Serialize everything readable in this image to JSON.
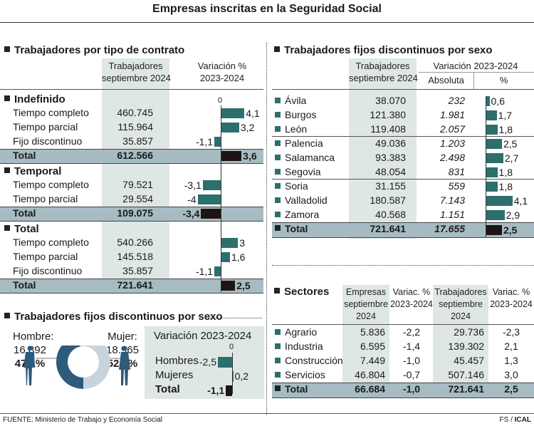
{
  "title": "Empresas inscritas en la Seguridad Social",
  "colors": {
    "bar": "#2c6f6d",
    "total_bar": "#1e1414",
    "total_row": "#a7bcc2",
    "shaded_column": "#dfe7e6",
    "donut_hombre": "#2e5a7c",
    "donut_mujer": "#c9d3dd"
  },
  "contrato": {
    "title": "Trabajadores por tipo de contrato",
    "col1": [
      "Trabajadores",
      "septiembre 2024"
    ],
    "col2": [
      "Variación %",
      "2023-2024"
    ],
    "zero_label": "0",
    "groups": [
      {
        "name": "Indefinido",
        "rows": [
          {
            "label": "Tiempo completo",
            "value": "460.745",
            "var": 4.1,
            "var_label": "4,1"
          },
          {
            "label": "Tiempo parcial",
            "value": "115.964",
            "var": 3.2,
            "var_label": "3,2"
          },
          {
            "label": "Fijo discontinuo",
            "value": "35.857",
            "var": -1.1,
            "var_label": "-1,1"
          }
        ],
        "total": {
          "label": "Total",
          "value": "612.566",
          "var": 3.6,
          "var_label": "3,6"
        }
      },
      {
        "name": "Temporal",
        "rows": [
          {
            "label": "Tiempo completo",
            "value": "79.521",
            "var": -3.1,
            "var_label": "-3,1"
          },
          {
            "label": "Tiempo parcial",
            "value": "29.554",
            "var": -4,
            "var_label": "-4"
          }
        ],
        "total": {
          "label": "Total",
          "value": "109.075",
          "var": -3.4,
          "var_label": "-3,4"
        }
      },
      {
        "name": "Total",
        "rows": [
          {
            "label": "Tiempo completo",
            "value": "540.266",
            "var": 3,
            "var_label": "3"
          },
          {
            "label": "Tiempo parcial",
            "value": "145.518",
            "var": 1.6,
            "var_label": "1,6"
          },
          {
            "label": "Fijo discontinuo",
            "value": "35.857",
            "var": -1.1,
            "var_label": "-1,1"
          }
        ],
        "total": {
          "label": "Total",
          "value": "721.641",
          "var": 2.5,
          "var_label": "2,5"
        }
      }
    ]
  },
  "provincias": {
    "title": "Trabajadores fijos discontinuos por sexo",
    "col1": [
      "Trabajadores",
      "septiembre 2024"
    ],
    "col2": "Variación 2023-2024",
    "col2a": "Absoluta",
    "col2b": "%",
    "rows": [
      {
        "label": "Ávila",
        "value": "38.070",
        "abs": "232",
        "pct": 0.6,
        "pct_label": "0,6"
      },
      {
        "label": "Burgos",
        "value": "121.380",
        "abs": "1.981",
        "pct": 1.7,
        "pct_label": "1,7"
      },
      {
        "label": "León",
        "value": "119.408",
        "abs": "2.057",
        "pct": 1.8,
        "pct_label": "1,8"
      },
      {
        "label": "Palencia",
        "value": "49.036",
        "abs": "1.203",
        "pct": 2.5,
        "pct_label": "2,5"
      },
      {
        "label": "Salamanca",
        "value": "93.383",
        "abs": "2.498",
        "pct": 2.7,
        "pct_label": "2,7"
      },
      {
        "label": "Segovia",
        "value": "48.054",
        "abs": "831",
        "pct": 1.8,
        "pct_label": "1,8"
      },
      {
        "label": "Soria",
        "value": "31.155",
        "abs": "559",
        "pct": 1.8,
        "pct_label": "1,8"
      },
      {
        "label": "Valladolid",
        "value": "180.587",
        "abs": "7.143",
        "pct": 4.1,
        "pct_label": "4,1"
      },
      {
        "label": "Zamora",
        "value": "40.568",
        "abs": "1.151",
        "pct": 2.9,
        "pct_label": "2,9"
      }
    ],
    "total": {
      "label": "Total",
      "value": "721.641",
      "abs": "17.655",
      "pct": 2.5,
      "pct_label": "2,5"
    }
  },
  "sexo": {
    "title": "Trabajadores fijos discontinuos por sexo",
    "hombre": {
      "label": "Hombre:",
      "value": "16.892",
      "pct": 47.1,
      "pct_label": "47,1%"
    },
    "mujer": {
      "label": "Mujer:",
      "value": "18.965",
      "pct": 52.9,
      "pct_label": "52,9%"
    },
    "var_title": "Variación 2023-2024",
    "zero_label": "0",
    "rows": [
      {
        "label": "Hombres",
        "var": -2.5,
        "var_label": "-2,5"
      },
      {
        "label": "Mujeres",
        "var": 0.2,
        "var_label": "0,2"
      },
      {
        "label": "Total",
        "var": -1.1,
        "var_label": "-1,1"
      }
    ]
  },
  "sectores": {
    "title": "Sectores",
    "headers": [
      [
        "Empresas",
        "septiembre",
        "2024"
      ],
      [
        "Variac. %",
        "2023-2024"
      ],
      [
        "Trabajadores",
        "septiembre",
        "2024"
      ],
      [
        "Variac. %",
        "2023-2024"
      ]
    ],
    "rows": [
      {
        "label": "Agrario",
        "empresas": "5.836",
        "var_e": "-2,2",
        "trab": "29.736",
        "var_t": "-2,3"
      },
      {
        "label": "Industria",
        "empresas": "6.595",
        "var_e": "-1,4",
        "trab": "139.302",
        "var_t": "2,1"
      },
      {
        "label": "Construcción",
        "empresas": "7.449",
        "var_e": "-1,0",
        "trab": "45.457",
        "var_t": "1,3"
      },
      {
        "label": "Servicios",
        "empresas": "46.804",
        "var_e": "-0,7",
        "trab": "507.146",
        "var_t": "3,0"
      }
    ],
    "total": {
      "label": "Total",
      "empresas": "66.684",
      "var_e": "-1,0",
      "trab": "721.641",
      "var_t": "2,5"
    }
  },
  "footer": {
    "source": "FUENTE: Ministerio de Trabajo y Economía Social",
    "credit_a": "FS / ",
    "credit_b": "ICAL"
  }
}
